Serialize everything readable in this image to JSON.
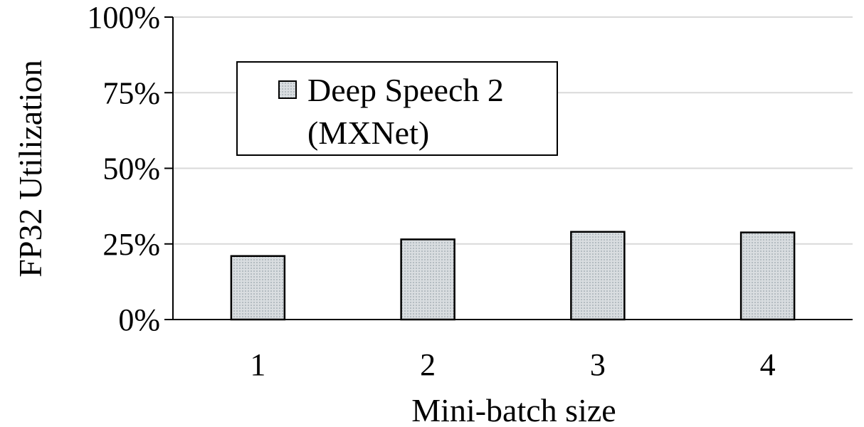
{
  "chart_data": {
    "type": "bar",
    "title": "",
    "xlabel": "Mini-batch size",
    "ylabel": "FP32 Utilization",
    "categories": [
      "1",
      "2",
      "3",
      "4"
    ],
    "series": [
      {
        "name": "Deep Speech 2 (MXNet)",
        "values": [
          21,
          26.5,
          29,
          28.8
        ]
      }
    ],
    "ylim": [
      0,
      100
    ],
    "yticks": [
      0,
      25,
      50,
      75,
      100
    ],
    "ytick_labels": [
      "0%",
      "25%",
      "50%",
      "75%",
      "100%"
    ],
    "grid": true,
    "legend": {
      "position": "upper-left-inside",
      "lines": [
        "Deep Speech 2",
        "(MXNet)"
      ]
    },
    "colors": {
      "bar_fill": "#d9dde0",
      "bar_dot": "#9aa4ab",
      "bar_stroke": "#000000",
      "grid": "#d9d9d9",
      "axis": "#000000"
    }
  }
}
